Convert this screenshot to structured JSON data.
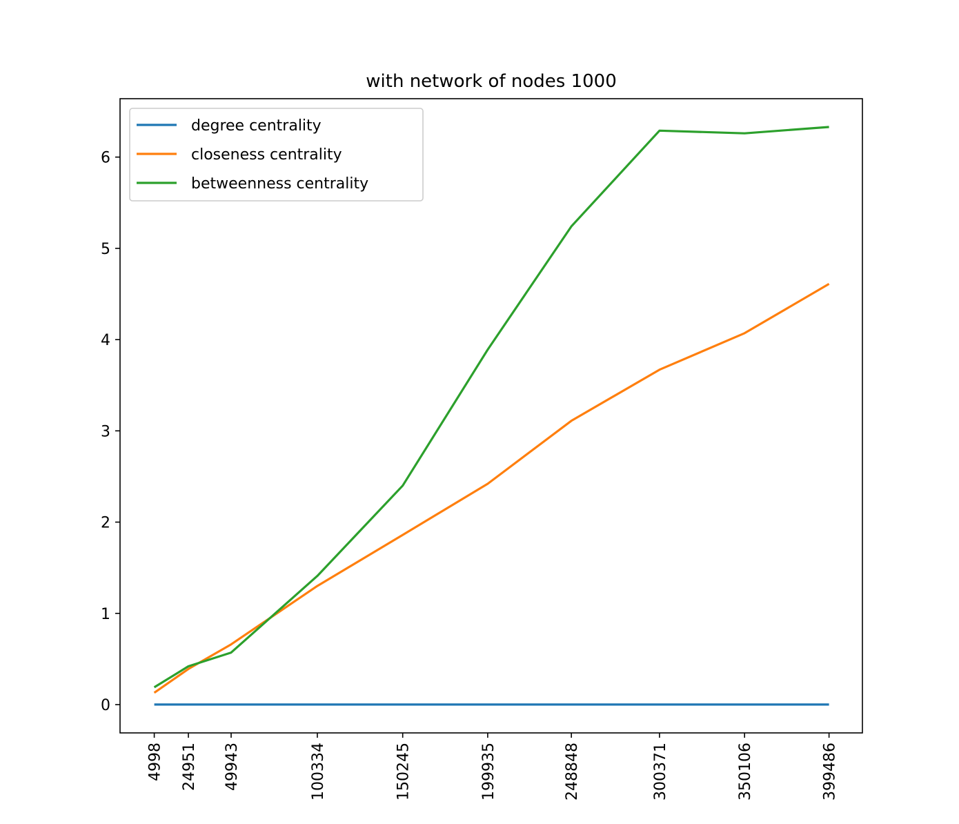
{
  "chart_data": {
    "type": "line",
    "title": "with network of nodes 1000",
    "xlabel": "",
    "ylabel": "",
    "x": [
      4998,
      24951,
      49943,
      100334,
      150245,
      199935,
      248848,
      300371,
      350106,
      399486
    ],
    "x_tick_labels": [
      "4998",
      "24951",
      "49943",
      "100334",
      "150245",
      "199935",
      "248848",
      "300371",
      "350106",
      "399486"
    ],
    "y_ticks": [
      0,
      1,
      2,
      3,
      4,
      5,
      6
    ],
    "y_tick_labels": [
      "0",
      "1",
      "2",
      "3",
      "4",
      "5",
      "6"
    ],
    "xlim": [
      -15000,
      419000
    ],
    "ylim": [
      -0.31,
      6.64
    ],
    "legend_position": "top-left",
    "series": [
      {
        "name": "degree centrality",
        "color": "#1f77b4",
        "values": [
          0.001,
          0.001,
          0.001,
          0.001,
          0.001,
          0.001,
          0.001,
          0.001,
          0.001,
          0.001
        ]
      },
      {
        "name": "closeness centrality",
        "color": "#ff7f0e",
        "values": [
          0.13,
          0.39,
          0.66,
          1.3,
          1.86,
          2.42,
          3.11,
          3.67,
          4.07,
          4.61
        ]
      },
      {
        "name": "betweenness centrality",
        "color": "#2ca02c",
        "values": [
          0.19,
          0.42,
          0.57,
          1.41,
          2.4,
          3.89,
          5.24,
          6.29,
          6.26,
          6.33
        ]
      }
    ]
  }
}
